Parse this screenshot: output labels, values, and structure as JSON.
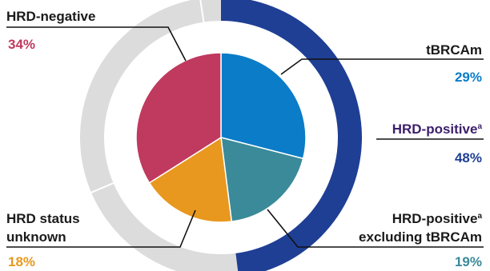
{
  "chart_data": {
    "type": "pie",
    "title": "",
    "inner_pie": [
      {
        "label": "tBRCAm",
        "value": 29,
        "value_label": "29%",
        "color": "#0a7cc8"
      },
      {
        "label": "HRD-positive excluding tBRCAm",
        "value": 19,
        "value_label": "19%",
        "color": "#3b8a99"
      },
      {
        "label": "HRD status unknown",
        "value": 18,
        "value_label": "18%",
        "color": "#e8981e"
      },
      {
        "label": "HRD-negative",
        "value": 34,
        "value_label": "34%",
        "color": "#c0395f"
      }
    ],
    "outer_ring": [
      {
        "label": "HRD-positive",
        "value": 48,
        "value_label": "48%",
        "color": "#1f3f94"
      },
      {
        "label": "other",
        "value": 52,
        "color": "#dcdcdc"
      }
    ],
    "footnote_marker": "a",
    "legend": "none"
  },
  "labels": {
    "hrd_negative": "HRD-negative",
    "tbrcam": "tBRCAm",
    "hrd_positive": "HRD-positive",
    "hrd_positive_excl_line1": "HRD-positive",
    "hrd_positive_excl_line2": "excluding tBRCAm",
    "hrd_unknown_line1": "HRD status",
    "hrd_unknown_line2": "unknown",
    "sup": "a"
  },
  "percents": {
    "hrd_negative": "34%",
    "tbrcam": "29%",
    "hrd_positive": "48%",
    "hrd_positive_excl": "19%",
    "hrd_unknown": "18%"
  },
  "colors": {
    "text_dark": "#1a1a1a",
    "hrd_positive_text": "#3b1f6b",
    "hrd_positive_pct": "#1f3f94",
    "tbrcam_pct": "#0a7cc8",
    "excl_pct": "#3b8a99",
    "unknown_pct": "#e8981e",
    "negative_pct": "#c0395f",
    "ring_gray": "#dcdcdc",
    "ring_blue": "#1f3f94"
  }
}
